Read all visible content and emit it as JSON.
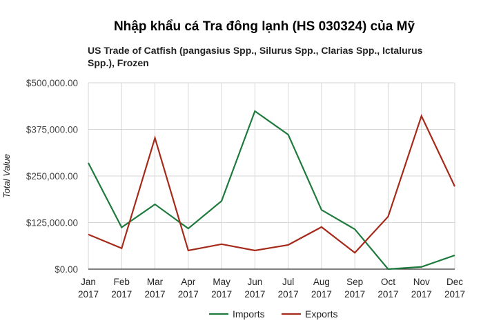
{
  "chart_data": {
    "type": "line",
    "title": "Nhập khẩu cá Tra đông lạnh (HS 030324) của Mỹ",
    "subtitle": "US Trade of Catfish (pangasius Spp., Silurus Spp., Clarias Spp., Ictalurus Spp.), Frozen",
    "xlabel": "",
    "ylabel": "Total Value",
    "ylim": [
      0,
      500000
    ],
    "yticks": [
      "$0.00",
      "$125,000.00",
      "$250,000.00",
      "$375,000.00",
      "$500,000.00"
    ],
    "categories": [
      "Jan 2017",
      "Feb 2017",
      "Mar 2017",
      "Apr 2017",
      "May 2017",
      "Jun 2017",
      "Jul 2017",
      "Aug 2017",
      "Sep 2017",
      "Oct 2017",
      "Nov 2017",
      "Dec 2017"
    ],
    "grid": true,
    "legend_position": "bottom",
    "series": [
      {
        "name": "Imports",
        "color": "#1e7a3c",
        "values": [
          285000,
          112000,
          174000,
          109000,
          183000,
          424000,
          361000,
          159000,
          107000,
          0,
          6000,
          37000
        ]
      },
      {
        "name": "Exports",
        "color": "#a52a1a",
        "values": [
          93000,
          56000,
          352000,
          50000,
          67000,
          50000,
          65000,
          113000,
          44000,
          141000,
          411000,
          222000
        ]
      }
    ]
  }
}
